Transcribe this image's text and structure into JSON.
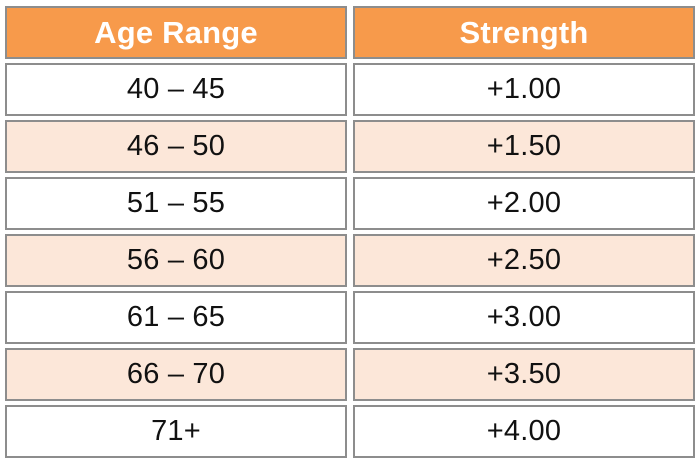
{
  "table": {
    "headers": [
      "Age Range",
      "Strength"
    ],
    "rows": [
      {
        "age": "40 – 45",
        "strength": "+1.00"
      },
      {
        "age": "46 – 50",
        "strength": "+1.50"
      },
      {
        "age": "51 – 55",
        "strength": "+2.00"
      },
      {
        "age": "56 – 60",
        "strength": "+2.50"
      },
      {
        "age": "61 – 65",
        "strength": "+3.00"
      },
      {
        "age": "66 – 70",
        "strength": "+3.50"
      },
      {
        "age": "71+",
        "strength": "+4.00"
      }
    ]
  },
  "colors": {
    "header_bg": "#f79a4b",
    "header_text": "#ffffff",
    "row_alt_bg": "#fce7d9",
    "row_bg": "#ffffff",
    "border": "#8d8d8d"
  }
}
